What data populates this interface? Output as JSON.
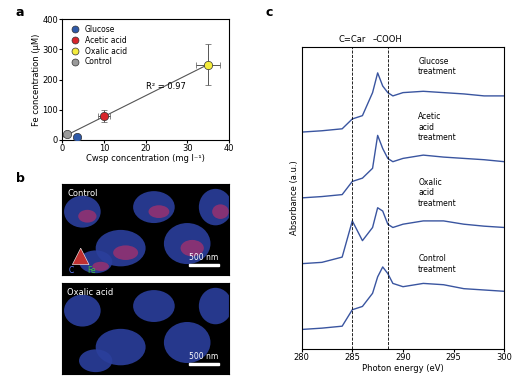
{
  "chart_data": [
    {
      "panel": "a",
      "type": "scatter",
      "x_label": "Cwsp concentration (mg l⁻¹)",
      "y_label": "Fe concentration (μM)",
      "xlim": [
        0,
        40
      ],
      "xticks": [
        0,
        10,
        20,
        30,
        40
      ],
      "ylim": [
        0,
        400
      ],
      "yticks": [
        0,
        100,
        200,
        300,
        400
      ],
      "legend": "upper left",
      "annotations": [
        "R² = 0.97"
      ],
      "fit_line": {
        "x": [
          0,
          35
        ],
        "values": [
          8,
          250
        ]
      },
      "series": [
        {
          "name": "Glucose",
          "color": "#2f5aa8",
          "x": [
            3.5
          ],
          "values": [
            8
          ],
          "x_error": [
            0
          ],
          "y_error": [
            0
          ]
        },
        {
          "name": "Acetic acid",
          "color": "#d8262b",
          "x": [
            10
          ],
          "values": [
            80
          ],
          "x_error": [
            1.5
          ],
          "y_error": [
            20
          ]
        },
        {
          "name": "Oxalic acid",
          "color": "#f4ec3c",
          "x": [
            35
          ],
          "values": [
            250
          ],
          "x_error": [
            3
          ],
          "y_error": [
            68
          ]
        },
        {
          "name": "Control",
          "color": "#9a9a9a",
          "x": [
            1
          ],
          "values": [
            20
          ],
          "x_error": [
            0
          ],
          "y_error": [
            0
          ]
        }
      ]
    },
    {
      "panel": "c",
      "type": "line",
      "x_label": "Photon energy (eV)",
      "y_label": "Absorbance (a.u.)",
      "xlim": [
        280,
        300
      ],
      "xticks": [
        280,
        285,
        290,
        295,
        300
      ],
      "ylim": [
        -0.3,
        4.3
      ],
      "tick_labels": "x",
      "reference_lines": [
        {
          "x": 285,
          "label": "C=Car"
        },
        {
          "x": 288.5,
          "label": "–COOH"
        }
      ],
      "x": [
        280,
        282,
        284,
        285,
        286,
        287,
        287.5,
        288,
        288.5,
        289,
        290,
        292,
        294,
        296,
        298,
        300
      ],
      "series": [
        {
          "name": "Glucose treatment",
          "color": "#3a55a0",
          "offset": 3,
          "values": [
            0,
            0.02,
            0.05,
            0.2,
            0.25,
            0.6,
            0.9,
            0.7,
            0.6,
            0.55,
            0.6,
            0.62,
            0.6,
            0.58,
            0.55,
            0.55
          ]
        },
        {
          "name": "Acetic acid treatment",
          "color": "#3a55a0",
          "offset": 2,
          "values": [
            0,
            0.02,
            0.05,
            0.25,
            0.3,
            0.45,
            0.95,
            0.75,
            0.6,
            0.55,
            0.6,
            0.65,
            0.62,
            0.6,
            0.58,
            0.55
          ]
        },
        {
          "name": "Oxalic acid treatment",
          "color": "#3a55a0",
          "offset": 1,
          "values": [
            0,
            0.02,
            0.1,
            0.65,
            0.35,
            0.55,
            0.85,
            0.8,
            0.6,
            0.55,
            0.6,
            0.65,
            0.65,
            0.6,
            0.57,
            0.55
          ]
        },
        {
          "name": "Control treatment",
          "color": "#3a55a0",
          "offset": 0,
          "values": [
            0,
            0.02,
            0.05,
            0.3,
            0.35,
            0.55,
            0.8,
            0.95,
            0.85,
            0.7,
            0.65,
            0.7,
            0.68,
            0.62,
            0.6,
            0.58
          ]
        }
      ]
    }
  ],
  "panel_b": {
    "panel": "b",
    "images": [
      {
        "label": "Control",
        "scale_bar": "500 nm"
      },
      {
        "label": "Oxalic acid",
        "scale_bar": "500 nm"
      }
    ],
    "channel_key": [
      "C",
      "Fe"
    ]
  }
}
